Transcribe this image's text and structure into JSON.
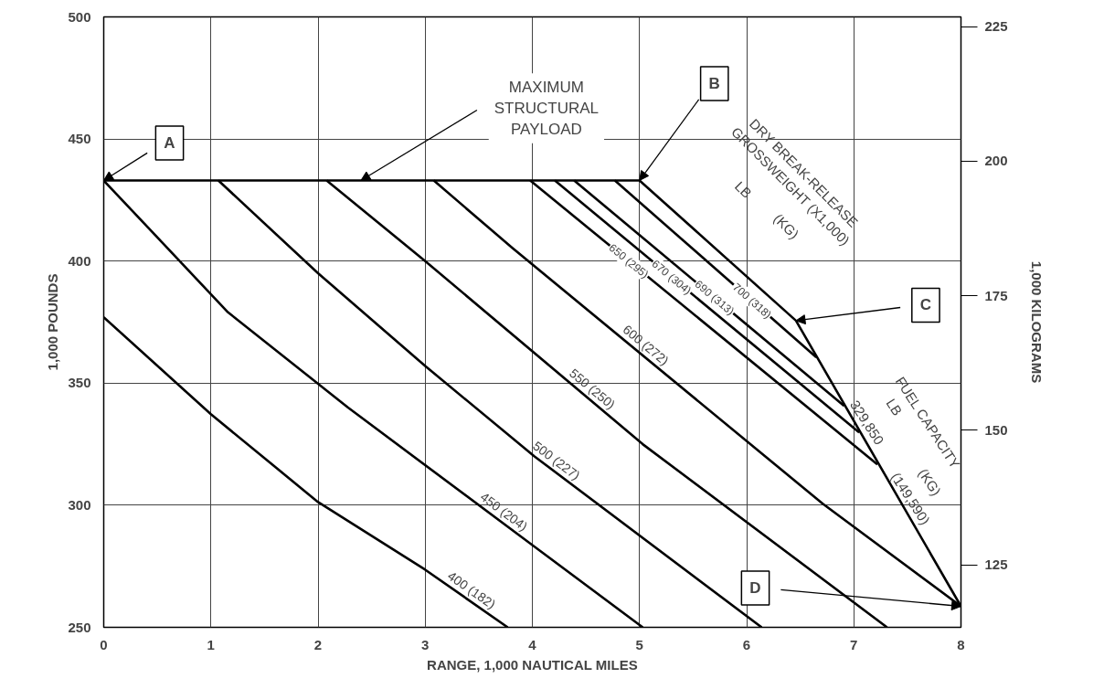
{
  "chart_data": {
    "type": "line",
    "xlabel": "RANGE, 1,000 NAUTICAL MILES",
    "ylabel": "1,000 POUNDS",
    "y2label": "1,000 KILOGRAMS",
    "xlim": [
      0,
      8
    ],
    "xticks": [
      0,
      1,
      2,
      3,
      4,
      5,
      6,
      7,
      8
    ],
    "ylim": [
      250,
      500
    ],
    "yticks": [
      250,
      300,
      350,
      400,
      450,
      500
    ],
    "y2lim": [
      113.4,
      226.8
    ],
    "y2ticks": [
      125,
      150,
      175,
      200,
      225
    ],
    "grid": true,
    "line_style": "solid",
    "series": [
      {
        "name": "400 (182)",
        "color": "#000000",
        "x": [
          0,
          1,
          2,
          3,
          3.77
        ],
        "values": [
          377,
          337.3,
          301.3,
          273.6,
          250
        ]
      },
      {
        "name": "450 (204)",
        "color": "#000000",
        "x": [
          0,
          1.16,
          2.28,
          4.02,
          5.03
        ],
        "values": [
          433,
          379,
          340,
          283,
          250
        ]
      },
      {
        "name": "500 (227)",
        "color": "#000000",
        "x": [
          1.07,
          2,
          3,
          4.02,
          6.14
        ],
        "values": [
          433,
          395,
          357,
          320,
          250
        ]
      },
      {
        "name": "550 (250)",
        "color": "#000000",
        "x": [
          2.08,
          3,
          5.03,
          7.31
        ],
        "values": [
          433,
          400,
          325,
          250
        ]
      },
      {
        "name": "600 (272)",
        "color": "#000000",
        "x": [
          3.08,
          3.81,
          6.71,
          8
        ],
        "values": [
          433,
          405.5,
          300.6,
          258.6
        ]
      },
      {
        "name": "650 (295)",
        "color": "#000000",
        "x": [
          3.98,
          7.22
        ],
        "values": [
          433,
          316.7
        ]
      },
      {
        "name": "670 (304)",
        "color": "#000000",
        "x": [
          4.21,
          7.05
        ],
        "values": [
          433,
          329.8
        ]
      },
      {
        "name": "690 (313)",
        "color": "#000000",
        "x": [
          4.39,
          6.91
        ],
        "values": [
          433,
          340.7
        ]
      },
      {
        "name": "700 (318)",
        "color": "#000000",
        "x": [
          4.77,
          6.65
        ],
        "values": [
          433,
          360.6
        ]
      },
      {
        "color": "#000000",
        "x": [
          0,
          5,
          6.46,
          8
        ],
        "values": [
          433,
          433,
          375.6,
          258.6
        ]
      }
    ],
    "annotations": [
      {
        "text": "A",
        "x": 0,
        "y": 433
      },
      {
        "text": "B",
        "x": 5,
        "y": 433
      },
      {
        "text": "C",
        "x": 6.46,
        "y": 375.6
      },
      {
        "text": "D",
        "x": 8,
        "y": 258.6
      },
      {
        "text": "MAXIMUM\nSTRUCTURAL\nPAYLOAD",
        "x": 2.4,
        "y": 433
      },
      "DRY BREAK-RELEASE\nGROSSWEIGHT (X1,000)",
      "LB",
      "(KG)",
      "FUEL CAPACITY",
      "LB",
      "(KG)",
      "329,850",
      "(149,590)"
    ]
  }
}
